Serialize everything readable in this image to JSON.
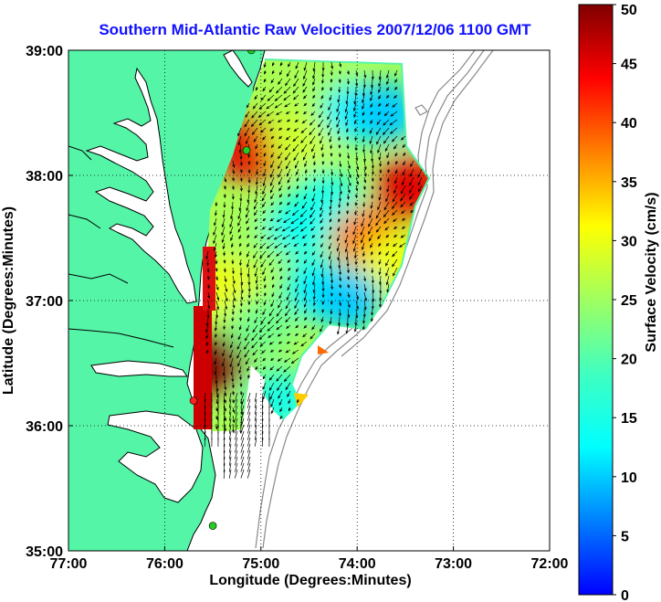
{
  "chart_data": {
    "type": "heatmap",
    "title": "Southern Mid-Atlantic Raw Velocities 2007/12/06 1100 GMT",
    "xlabel": "Longitude (Degrees:Minutes)",
    "ylabel": "Latitude (Degrees:Minutes)",
    "xlim": [
      -77,
      -72
    ],
    "ylim": [
      35,
      39
    ],
    "x_ticks": [
      {
        "value": -77,
        "label": "77:00"
      },
      {
        "value": -76,
        "label": "76:00"
      },
      {
        "value": -75,
        "label": "75:00"
      },
      {
        "value": -74,
        "label": "74:00"
      },
      {
        "value": -73,
        "label": "73:00"
      },
      {
        "value": -72,
        "label": "72:00"
      }
    ],
    "y_ticks": [
      {
        "value": 35,
        "label": "35:00"
      },
      {
        "value": 36,
        "label": "36:00"
      },
      {
        "value": 37,
        "label": "37:00"
      },
      {
        "value": 38,
        "label": "38:00"
      },
      {
        "value": 39,
        "label": "39:00"
      }
    ],
    "grid": true,
    "colorbar": {
      "label": "Surface Velocity (cm/s)",
      "range": [
        0,
        50
      ],
      "ticks": [
        {
          "value": 0,
          "label": "0"
        },
        {
          "value": 5,
          "label": "5"
        },
        {
          "value": 10,
          "label": "10"
        },
        {
          "value": 15,
          "label": "15"
        },
        {
          "value": 20,
          "label": "20"
        },
        {
          "value": 25,
          "label": "25"
        },
        {
          "value": 30,
          "label": "30"
        },
        {
          "value": 35,
          "label": "35"
        },
        {
          "value": 40,
          "label": "40"
        },
        {
          "value": 45,
          "label": "45"
        },
        {
          "value": 50,
          "label": "50"
        }
      ]
    },
    "velocity_field_regions": [
      {
        "lon": -74.95,
        "lat": 37.5,
        "speed": 25
      },
      {
        "lon": -75.1,
        "lat": 38.2,
        "speed": 45
      },
      {
        "lon": -74.6,
        "lat": 38.3,
        "speed": 28
      },
      {
        "lon": -74.2,
        "lat": 38.6,
        "speed": 25
      },
      {
        "lon": -74.0,
        "lat": 38.5,
        "speed": 12
      },
      {
        "lon": -73.7,
        "lat": 38.5,
        "speed": 10
      },
      {
        "lon": -74.3,
        "lat": 37.8,
        "speed": 15
      },
      {
        "lon": -74.6,
        "lat": 37.6,
        "speed": 14
      },
      {
        "lon": -73.9,
        "lat": 37.5,
        "speed": 38
      },
      {
        "lon": -73.6,
        "lat": 37.3,
        "speed": 30
      },
      {
        "lon": -74.4,
        "lat": 37.1,
        "speed": 12
      },
      {
        "lon": -74.1,
        "lat": 37.0,
        "speed": 10
      },
      {
        "lon": -75.4,
        "lat": 37.1,
        "speed": 30
      },
      {
        "lon": -75.55,
        "lat": 36.5,
        "speed": 50
      },
      {
        "lon": -75.0,
        "lat": 36.8,
        "speed": 22
      },
      {
        "lon": -74.8,
        "lat": 36.2,
        "speed": 15
      },
      {
        "lon": -73.45,
        "lat": 37.9,
        "speed": 45
      }
    ],
    "stations": [
      {
        "lon": -75.1,
        "lat": 39.0,
        "color": "#22cc22"
      },
      {
        "lon": -75.15,
        "lat": 38.2,
        "color": "#22cc22"
      },
      {
        "lon": -75.7,
        "lat": 36.2,
        "color": "#ff2020"
      },
      {
        "lon": -75.5,
        "lat": 35.2,
        "color": "#22cc22"
      }
    ],
    "colors": {
      "land": "#55f5a8",
      "coast": "#000000",
      "bathymetry": "#8a8a8a",
      "grid": "#000000"
    }
  }
}
